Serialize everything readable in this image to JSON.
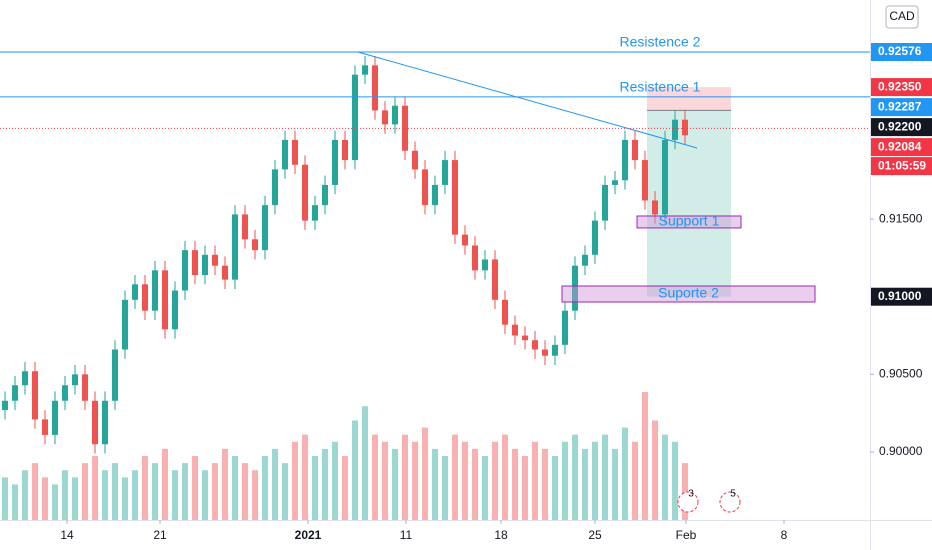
{
  "chart_data": {
    "type": "candlestick",
    "currency": "CAD",
    "colors": {
      "up": "#26a69a",
      "down": "#ef5350"
    },
    "xlim": [
      -0.5,
      86.5
    ],
    "xticks": [
      {
        "value": 6.2,
        "label": "14"
      },
      {
        "value": 15.5,
        "label": "21"
      },
      {
        "value": 30.3,
        "label": "2021"
      },
      {
        "value": 40.1,
        "label": "11"
      },
      {
        "value": 49.6,
        "label": "18"
      },
      {
        "value": 59,
        "label": "25"
      },
      {
        "value": 68.1,
        "label": "Feb"
      },
      {
        "value": 77.9,
        "label": "8"
      }
    ],
    "ylim": [
      0.89562,
      0.92911
    ],
    "yticks": [
      {
        "value": 0.9,
        "label": "0.90000"
      },
      {
        "value": 0.905,
        "label": "0.90500"
      },
      {
        "value": 0.915,
        "label": "0.91500"
      }
    ],
    "open": [
      0.9027,
      0.9033,
      0.9043,
      0.9052,
      0.9021,
      0.9011,
      0.9033,
      0.9043,
      0.905,
      0.9033,
      0.9005,
      0.9033,
      0.9066,
      0.9098,
      0.9108,
      0.9091,
      0.9117,
      0.9079,
      0.9104,
      0.913,
      0.9114,
      0.9127,
      0.912,
      0.9111,
      0.9153,
      0.9137,
      0.913,
      0.9159,
      0.9182,
      0.9201,
      0.9185,
      0.9149,
      0.9159,
      0.9172,
      0.9201,
      0.9188,
      0.9243,
      0.9249,
      0.922,
      0.9211,
      0.9223,
      0.9194,
      0.9182,
      0.9159,
      0.9172,
      0.9188,
      0.914,
      0.9133,
      0.9117,
      0.9124,
      0.9098,
      0.9082,
      0.9075,
      0.9072,
      0.9066,
      0.9062,
      0.9069,
      0.9091,
      0.912,
      0.9127,
      0.9149,
      0.9172,
      0.9175,
      0.9201,
      0.9188,
      0.9162,
      0.9153,
      0.9201,
      0.9214
    ],
    "high": [
      0.9039,
      0.9049,
      0.9058,
      0.9058,
      0.9027,
      0.9039,
      0.9049,
      0.9056,
      0.9056,
      0.9039,
      0.9039,
      0.9072,
      0.9104,
      0.9114,
      0.9114,
      0.9123,
      0.9123,
      0.911,
      0.9136,
      0.9136,
      0.9133,
      0.9133,
      0.9126,
      0.9159,
      0.9159,
      0.9143,
      0.9165,
      0.9188,
      0.9207,
      0.9207,
      0.9191,
      0.9165,
      0.9178,
      0.9207,
      0.9207,
      0.9249,
      0.9255,
      0.9255,
      0.9226,
      0.9229,
      0.9229,
      0.92,
      0.9188,
      0.9178,
      0.9194,
      0.9194,
      0.9146,
      0.9139,
      0.913,
      0.913,
      0.9104,
      0.9088,
      0.9081,
      0.9078,
      0.9072,
      0.9075,
      0.9097,
      0.9126,
      0.9133,
      0.9155,
      0.9178,
      0.9181,
      0.9207,
      0.9207,
      0.9194,
      0.9168,
      0.9207,
      0.922,
      0.922
    ],
    "low": [
      0.9021,
      0.9027,
      0.9037,
      0.9015,
      0.9005,
      0.9005,
      0.9027,
      0.9037,
      0.9027,
      0.8999,
      0.8999,
      0.9027,
      0.906,
      0.9092,
      0.9085,
      0.9085,
      0.9073,
      0.9073,
      0.9098,
      0.9108,
      0.9108,
      0.9114,
      0.9105,
      0.9105,
      0.9131,
      0.9124,
      0.9124,
      0.9153,
      0.9176,
      0.9179,
      0.9143,
      0.9143,
      0.9153,
      0.9166,
      0.9182,
      0.9182,
      0.9237,
      0.9214,
      0.9205,
      0.9205,
      0.9188,
      0.9176,
      0.9153,
      0.9153,
      0.9166,
      0.9134,
      0.9127,
      0.9111,
      0.9111,
      0.9092,
      0.9076,
      0.9069,
      0.9066,
      0.906,
      0.9056,
      0.9056,
      0.9063,
      0.9085,
      0.9114,
      0.9121,
      0.9143,
      0.9166,
      0.9169,
      0.9182,
      0.9156,
      0.9147,
      0.9147,
      0.9195,
      0.9198
    ],
    "close": [
      0.9033,
      0.9043,
      0.9052,
      0.9021,
      0.9011,
      0.9033,
      0.9043,
      0.905,
      0.9033,
      0.9005,
      0.9033,
      0.9066,
      0.9098,
      0.9108,
      0.9091,
      0.9117,
      0.9079,
      0.9104,
      0.913,
      0.9114,
      0.9127,
      0.912,
      0.9111,
      0.9153,
      0.9137,
      0.913,
      0.9159,
      0.9182,
      0.9201,
      0.9185,
      0.9149,
      0.9159,
      0.9172,
      0.9201,
      0.9188,
      0.9243,
      0.9249,
      0.922,
      0.9211,
      0.9223,
      0.9194,
      0.9182,
      0.9159,
      0.9172,
      0.9188,
      0.914,
      0.9133,
      0.9117,
      0.9124,
      0.9098,
      0.9082,
      0.9075,
      0.9072,
      0.9066,
      0.9062,
      0.9069,
      0.9091,
      0.912,
      0.9127,
      0.9149,
      0.9172,
      0.9175,
      0.9201,
      0.9188,
      0.9162,
      0.9153,
      0.9201,
      0.9214,
      0.9204
    ],
    "volume": [
      30,
      25,
      35,
      40,
      30,
      25,
      35,
      30,
      40,
      45,
      35,
      40,
      30,
      35,
      45,
      40,
      50,
      35,
      40,
      45,
      35,
      40,
      50,
      45,
      40,
      35,
      45,
      50,
      40,
      55,
      60,
      45,
      50,
      55,
      45,
      70,
      80,
      60,
      55,
      50,
      60,
      55,
      65,
      50,
      45,
      60,
      55,
      50,
      45,
      55,
      60,
      50,
      45,
      55,
      50,
      45,
      55,
      60,
      50,
      55,
      60,
      50,
      65,
      55,
      90,
      70,
      60,
      55,
      40
    ],
    "levels": [
      {
        "label": "Resistence 2",
        "value": 0.92576,
        "color": "#2196f3"
      },
      {
        "label": "Resistence 1",
        "value": 0.92287,
        "color": "#2196f3"
      }
    ],
    "trendline": {
      "x": [
        35.3,
        69.2
      ],
      "y": [
        0.92576,
        0.91958
      ],
      "color": "#2196f3"
    },
    "zones": [
      {
        "label": "Support 1",
        "x": [
          63.2,
          73.6
        ],
        "y": [
          0.91443,
          0.9152
        ]
      },
      {
        "label": "Suporte 2",
        "x": [
          55.7,
          81
        ],
        "y": [
          0.90966,
          0.91069
        ]
      }
    ],
    "position": {
      "x": [
        64.2,
        72.6
      ],
      "entry": 0.922,
      "stop": 0.9235,
      "target": 0.91
    },
    "current_price": {
      "value": 0.92084,
      "label": "0.92084",
      "countdown": "01:05:59"
    },
    "price_tags": [
      {
        "value": 0.92576,
        "label": "0.92576",
        "color": "#2196f3"
      },
      {
        "value": 0.9235,
        "label": "0.92350",
        "color": "#f23645"
      },
      {
        "value": 0.92287,
        "label": "0.92287",
        "color": "#2196f3"
      },
      {
        "value": 0.922,
        "label": "0.92200",
        "color": "#131722"
      },
      {
        "value": 0.91,
        "label": "0.91000",
        "color": "#131722"
      }
    ],
    "events": [
      {
        "x": 68.3,
        "label": "3"
      },
      {
        "x": 72.5,
        "label": "5"
      }
    ]
  }
}
